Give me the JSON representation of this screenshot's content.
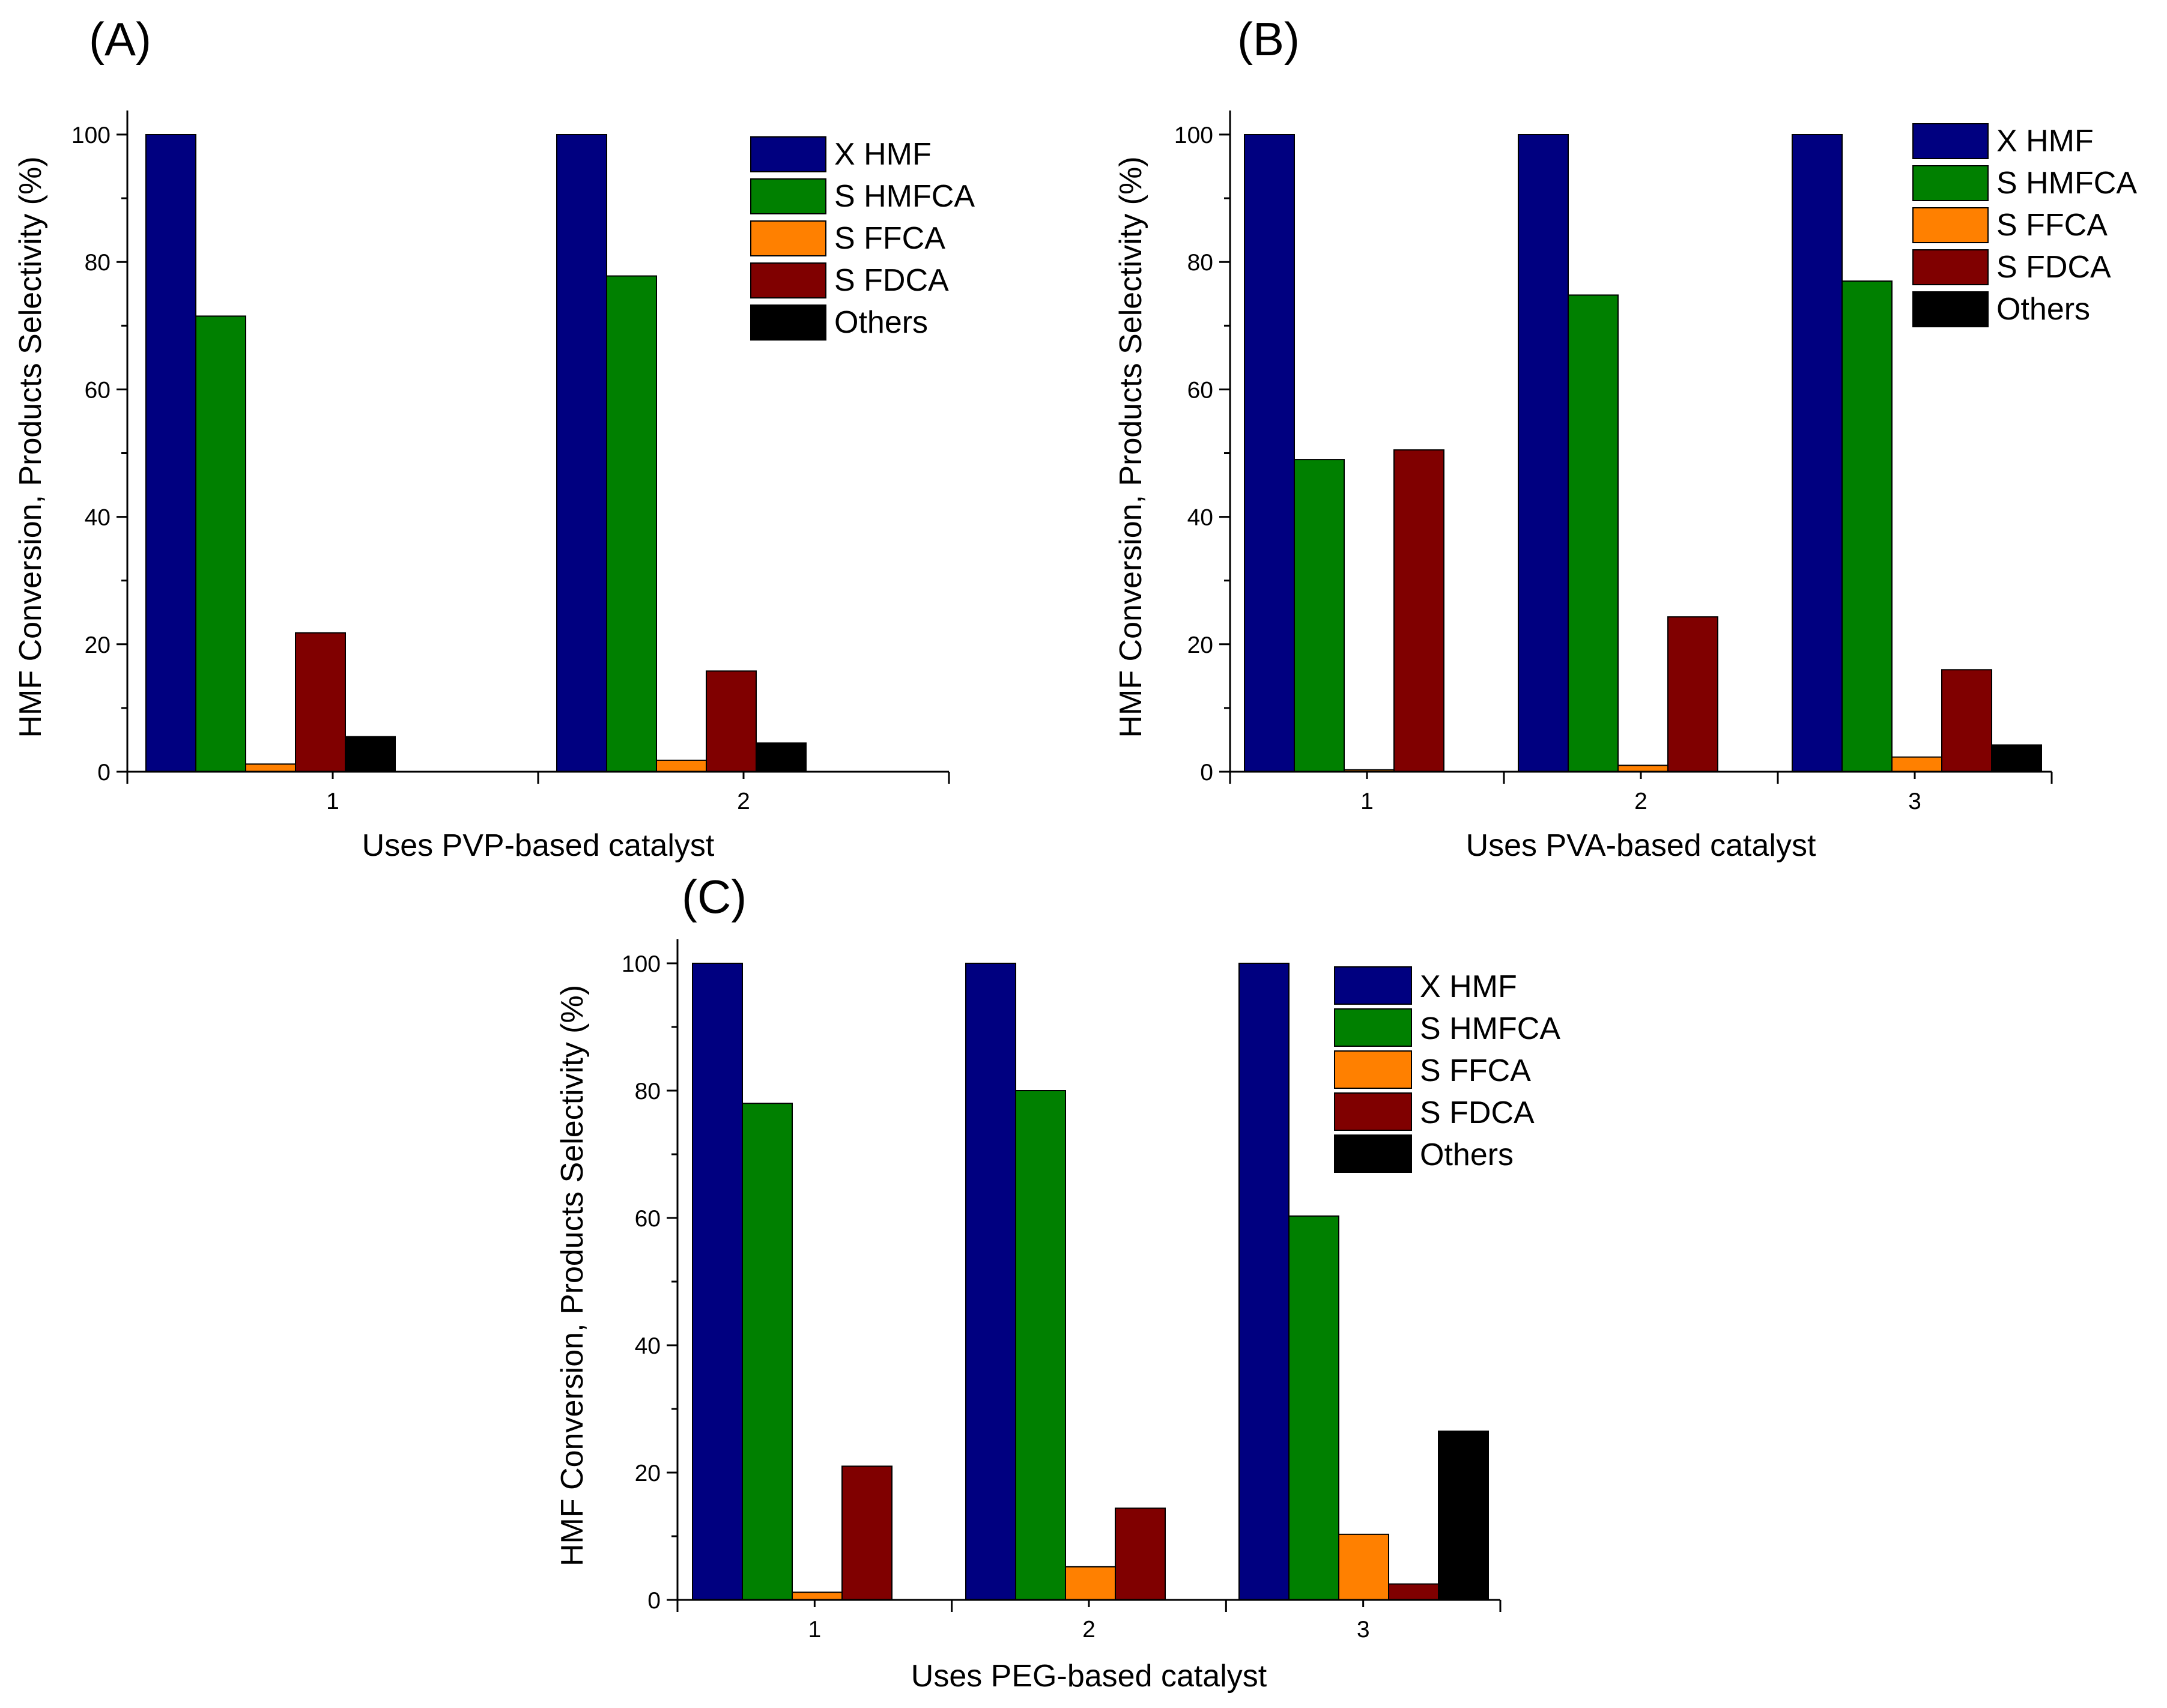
{
  "colors": {
    "X HMF": "#000080",
    "S HMFCA": "#008000",
    "S FFCA": "#ff8000",
    "S FDCA": "#800000",
    "Others": "#000000"
  },
  "chart_data": [
    {
      "type": "bar",
      "panel_label": "(A)",
      "title": "",
      "xlabel": "Uses PVP-based catalyst",
      "ylabel": "HMF Conversion, Products Selectivity (%)",
      "categories": [
        "1",
        "2"
      ],
      "ylim": [
        0,
        104
      ],
      "yticks": [
        "0",
        "20",
        "40",
        "60",
        "80",
        "100"
      ],
      "legend_position": "top-right",
      "series": [
        {
          "name": "X HMF",
          "values": [
            100,
            100
          ]
        },
        {
          "name": "S HMFCA",
          "values": [
            71.5,
            77.8
          ]
        },
        {
          "name": "S FFCA",
          "values": [
            1.2,
            1.8
          ]
        },
        {
          "name": "S FDCA",
          "values": [
            21.8,
            15.8
          ]
        },
        {
          "name": "Others",
          "values": [
            5.5,
            4.5
          ]
        }
      ]
    },
    {
      "type": "bar",
      "panel_label": "(B)",
      "title": "",
      "xlabel": "Uses PVA-based catalyst",
      "ylabel": "HMF Conversion, Products Selectivity (%)",
      "categories": [
        "1",
        "2",
        "3"
      ],
      "ylim": [
        0,
        104
      ],
      "yticks": [
        "0",
        "20",
        "40",
        "60",
        "80",
        "100"
      ],
      "legend_position": "top-right",
      "series": [
        {
          "name": "X HMF",
          "values": [
            100,
            100,
            100
          ]
        },
        {
          "name": "S HMFCA",
          "values": [
            49,
            74.8,
            77
          ]
        },
        {
          "name": "S FFCA",
          "values": [
            0.3,
            1,
            2.3
          ]
        },
        {
          "name": "S FDCA",
          "values": [
            50.5,
            24.3,
            16
          ]
        },
        {
          "name": "Others",
          "values": [
            0,
            0,
            4.2
          ]
        }
      ]
    },
    {
      "type": "bar",
      "panel_label": "(C)",
      "title": "",
      "xlabel": "Uses PEG-based catalyst",
      "ylabel": "HMF Conversion, Products Selectivity (%)",
      "categories": [
        "1",
        "2",
        "3"
      ],
      "ylim": [
        0,
        100
      ],
      "yticks": [
        "0",
        "20",
        "40",
        "60",
        "80",
        "100"
      ],
      "legend_position": "top-right",
      "series": [
        {
          "name": "X HMF",
          "values": [
            100,
            100,
            100
          ]
        },
        {
          "name": "S HMFCA",
          "values": [
            78,
            80,
            60.3
          ]
        },
        {
          "name": "S FFCA",
          "values": [
            1.2,
            5.2,
            10.3
          ]
        },
        {
          "name": "S FDCA",
          "values": [
            21,
            14.4,
            2.5
          ]
        },
        {
          "name": "Others",
          "values": [
            0,
            0,
            26.5
          ]
        }
      ]
    }
  ]
}
